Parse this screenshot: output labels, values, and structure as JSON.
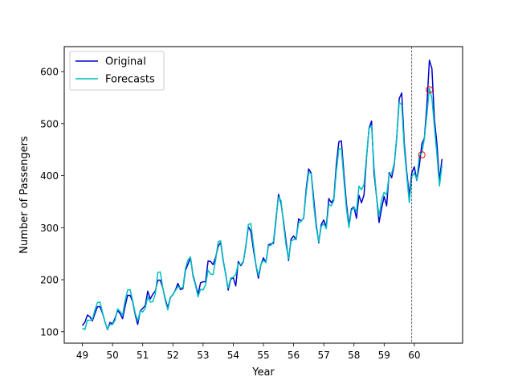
{
  "chart_data": {
    "type": "line",
    "title": "",
    "xlabel": "Year",
    "ylabel": "Number of Passengers",
    "xlim": [
      48.4,
      61.6
    ],
    "ylim": [
      78,
      648
    ],
    "x_ticks": [
      49,
      50,
      51,
      52,
      53,
      54,
      55,
      56,
      57,
      58,
      59,
      60
    ],
    "y_ticks": [
      100,
      200,
      300,
      400,
      500,
      600
    ],
    "legend_position": "top-left",
    "grid": false,
    "vline_x": 59.917,
    "series": [
      {
        "name": "Original",
        "color": "#0000cc",
        "x_start": 49.0,
        "x_step": 0.08333,
        "values": [
          112,
          118,
          132,
          129,
          121,
          135,
          148,
          148,
          136,
          119,
          104,
          118,
          115,
          126,
          141,
          135,
          125,
          149,
          170,
          170,
          158,
          133,
          114,
          140,
          145,
          150,
          178,
          163,
          172,
          178,
          199,
          199,
          184,
          162,
          146,
          166,
          171,
          180,
          193,
          181,
          183,
          218,
          230,
          242,
          209,
          191,
          172,
          194,
          196,
          196,
          236,
          235,
          229,
          243,
          264,
          272,
          237,
          211,
          180,
          201,
          204,
          188,
          235,
          227,
          234,
          264,
          302,
          293,
          259,
          229,
          203,
          229,
          242,
          233,
          267,
          269,
          270,
          315,
          364,
          347,
          312,
          274,
          237,
          278,
          284,
          277,
          317,
          313,
          318,
          374,
          413,
          405,
          355,
          306,
          271,
          306,
          315,
          301,
          356,
          348,
          355,
          422,
          465,
          467,
          404,
          347,
          305,
          336,
          340,
          318,
          362,
          348,
          363,
          435,
          491,
          505,
          404,
          359,
          310,
          337,
          360,
          342,
          406,
          396,
          420,
          472,
          548,
          559,
          463,
          407,
          362,
          405,
          417,
          391,
          419,
          461,
          472,
          535,
          622,
          606,
          508,
          461,
          390,
          432
        ]
      },
      {
        "name": "Forecasts",
        "color": "#00bfbf",
        "x_start": 49.0,
        "x_step": 0.08333,
        "values": [
          107,
          104,
          122,
          122,
          124,
          142,
          156,
          157,
          138,
          118,
          105,
          114,
          114,
          122,
          144,
          139,
          132,
          160,
          180,
          181,
          160,
          136,
          121,
          140,
          138,
          145,
          167,
          157,
          158,
          172,
          214,
          215,
          184,
          159,
          142,
          165,
          172,
          179,
          187,
          184,
          185,
          222,
          238,
          244,
          206,
          189,
          167,
          182,
          180,
          190,
          218,
          211,
          210,
          238,
          273,
          275,
          239,
          209,
          184,
          203,
          205,
          210,
          231,
          229,
          235,
          266,
          306,
          308,
          268,
          230,
          208,
          230,
          237,
          233,
          265,
          266,
          274,
          320,
          359,
          352,
          307,
          266,
          240,
          274,
          277,
          278,
          309,
          312,
          319,
          367,
          406,
          404,
          344,
          300,
          273,
          302,
          308,
          298,
          345,
          342,
          352,
          409,
          451,
          452,
          392,
          337,
          300,
          333,
          339,
          331,
          380,
          373,
          383,
          437,
          491,
          496,
          416,
          359,
          322,
          354,
          368,
          363,
          403,
          404,
          423,
          474,
          541,
          536,
          452,
          400,
          348,
          398,
          405,
          392,
          439,
          443,
          471,
          517,
          568,
          549,
          494,
          440,
          380,
          420
        ]
      }
    ],
    "markers": [
      {
        "x": 60.25,
        "y": 440,
        "color": "#ff0000"
      },
      {
        "x": 60.5,
        "y": 565,
        "color": "#ff0000"
      }
    ]
  }
}
